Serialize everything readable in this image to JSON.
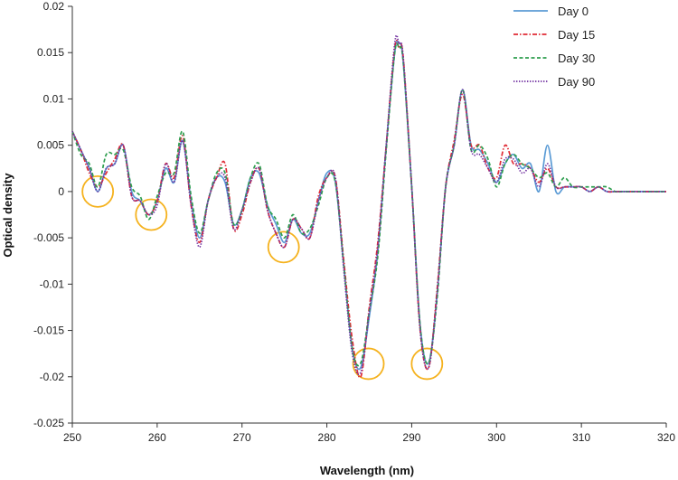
{
  "chart_data": {
    "type": "line",
    "title": "",
    "xlabel": "Wavelength (nm)",
    "ylabel": "Optical density",
    "xlim": [
      250,
      320
    ],
    "ylim": [
      -0.025,
      0.02
    ],
    "xticks": [
      250,
      260,
      270,
      280,
      290,
      300,
      310,
      320
    ],
    "yticks": [
      -0.025,
      -0.02,
      -0.015,
      -0.01,
      -0.005,
      0,
      0.005,
      0.01,
      0.015,
      0.02
    ],
    "xtick_labels": [
      "250",
      "260",
      "270",
      "280",
      "290",
      "300",
      "310",
      "320"
    ],
    "ytick_labels": [
      "-0.025",
      "-0.02",
      "-0.015",
      "-0.01",
      "-0.005",
      "0",
      "0.005",
      "0.01",
      "0.015",
      "0.02"
    ],
    "grid": false,
    "legend_position": "top-right",
    "series": [
      {
        "name": "Day 0",
        "color": "#5b9bd5",
        "dash": "solid",
        "x": [
          250,
          251,
          252,
          253,
          254,
          255,
          256,
          257,
          258,
          259,
          260,
          261,
          262,
          263,
          264,
          265,
          266,
          267,
          268,
          269,
          270,
          271,
          272,
          273,
          274,
          275,
          276,
          277,
          278,
          279,
          280,
          281,
          282,
          283,
          284,
          285,
          286,
          287,
          288,
          288.5,
          289,
          290,
          291,
          292,
          293,
          294,
          295,
          296,
          297,
          298,
          299,
          300,
          301,
          302,
          303,
          304,
          305,
          306,
          307,
          308,
          309,
          310,
          311,
          312,
          313,
          314,
          315,
          316,
          317,
          318,
          319,
          320
        ],
        "y": [
          0.0065,
          0.0045,
          0.0025,
          0.0,
          0.0025,
          0.003,
          0.005,
          0.0,
          -0.001,
          -0.0025,
          -0.001,
          0.0025,
          0.001,
          0.0055,
          -0.001,
          -0.005,
          -0.001,
          0.0015,
          0.001,
          -0.0035,
          -0.002,
          0.0015,
          0.002,
          -0.0015,
          -0.0035,
          -0.0055,
          -0.003,
          -0.0045,
          -0.0045,
          -0.001,
          0.002,
          0.001,
          -0.008,
          -0.017,
          -0.019,
          -0.0135,
          -0.0065,
          0.005,
          0.015,
          0.016,
          0.014,
          0.0005,
          -0.0145,
          -0.0185,
          -0.011,
          0.0005,
          0.005,
          0.011,
          0.005,
          0.0045,
          0.003,
          0.001,
          0.003,
          0.004,
          0.0025,
          0.003,
          0.0,
          0.005,
          0.0,
          0.0005,
          0.0005,
          0.0005,
          0.0,
          0.0005,
          0.0,
          0.0,
          0.0,
          0.0,
          0.0,
          0.0,
          0.0,
          0.0
        ]
      },
      {
        "name": "Day 15",
        "color": "#e02b35",
        "dash": "dashdot",
        "x": [
          250,
          251,
          252,
          253,
          254,
          255,
          256,
          257,
          258,
          259,
          260,
          261,
          262,
          263,
          264,
          265,
          266,
          267,
          268,
          269,
          270,
          271,
          272,
          273,
          274,
          275,
          276,
          277,
          278,
          279,
          280,
          281,
          282,
          283,
          284,
          285,
          286,
          287,
          288,
          288.5,
          289,
          290,
          291,
          292,
          293,
          294,
          295,
          296,
          297,
          298,
          299,
          300,
          301,
          302,
          303,
          304,
          305,
          306,
          307,
          308,
          309,
          310,
          311,
          312,
          313,
          314,
          315,
          316,
          317,
          318,
          319,
          320
        ],
        "y": [
          0.0065,
          0.0045,
          0.002,
          0.0005,
          0.002,
          0.0035,
          0.005,
          -0.0005,
          -0.001,
          -0.0025,
          -0.001,
          0.003,
          0.0015,
          0.006,
          -0.0015,
          -0.0055,
          -0.001,
          0.0015,
          0.003,
          -0.004,
          -0.0025,
          0.001,
          0.0025,
          -0.002,
          -0.0045,
          -0.006,
          -0.003,
          -0.004,
          -0.005,
          -0.0005,
          0.0015,
          0.0015,
          -0.0075,
          -0.016,
          -0.02,
          -0.0125,
          -0.0055,
          0.005,
          0.0155,
          0.0155,
          0.0145,
          0.0005,
          -0.015,
          -0.019,
          -0.0105,
          0.0005,
          0.0055,
          0.0105,
          0.005,
          0.005,
          0.0025,
          0.0015,
          0.005,
          0.003,
          0.003,
          0.0025,
          0.001,
          0.0025,
          0.0005,
          0.0005,
          0.0005,
          0.0005,
          0.0,
          0.0005,
          0.0,
          0.0,
          0.0,
          0.0,
          0.0,
          0.0,
          0.0,
          0.0
        ]
      },
      {
        "name": "Day 30",
        "color": "#2e9e4f",
        "dash": "dashed",
        "x": [
          250,
          251,
          252,
          253,
          254,
          255,
          256,
          257,
          258,
          259,
          260,
          261,
          262,
          263,
          264,
          265,
          266,
          267,
          268,
          269,
          270,
          271,
          272,
          273,
          274,
          275,
          276,
          277,
          278,
          279,
          280,
          281,
          282,
          283,
          284,
          285,
          286,
          287,
          288,
          288.5,
          289,
          290,
          291,
          292,
          293,
          294,
          295,
          296,
          297,
          298,
          299,
          300,
          301,
          302,
          303,
          304,
          305,
          306,
          307,
          308,
          309,
          310,
          311,
          312,
          313,
          314,
          315,
          316,
          317,
          318,
          319,
          320
        ],
        "y": [
          0.0065,
          0.004,
          0.003,
          0.0005,
          0.004,
          0.004,
          0.0045,
          0.0005,
          -0.0005,
          -0.003,
          -0.0005,
          0.002,
          0.002,
          0.0065,
          -0.0005,
          -0.0045,
          -0.001,
          0.002,
          0.002,
          -0.0035,
          -0.002,
          0.0015,
          0.003,
          -0.0015,
          -0.003,
          -0.005,
          -0.0025,
          -0.0045,
          -0.004,
          -0.0015,
          0.0015,
          0.001,
          -0.008,
          -0.017,
          -0.0185,
          -0.013,
          -0.007,
          0.0045,
          0.015,
          0.0155,
          0.014,
          0.0005,
          -0.0145,
          -0.0185,
          -0.0115,
          0.0005,
          0.005,
          0.011,
          0.0045,
          0.005,
          0.0035,
          0.0005,
          0.003,
          0.004,
          0.003,
          0.0025,
          0.0015,
          0.002,
          0.0005,
          0.0015,
          0.0005,
          0.0005,
          0.0005,
          0.0005,
          0.0005,
          0.0,
          0.0,
          0.0,
          0.0,
          0.0,
          0.0,
          0.0
        ]
      },
      {
        "name": "Day 90",
        "color": "#7030a0",
        "dash": "dotted",
        "x": [
          250,
          251,
          252,
          253,
          254,
          255,
          256,
          257,
          258,
          259,
          260,
          261,
          262,
          263,
          264,
          265,
          266,
          267,
          268,
          269,
          270,
          271,
          272,
          273,
          274,
          275,
          276,
          277,
          278,
          279,
          280,
          281,
          282,
          283,
          284,
          285,
          286,
          287,
          288,
          288.5,
          289,
          290,
          291,
          292,
          293,
          294,
          295,
          296,
          297,
          298,
          299,
          300,
          301,
          302,
          303,
          304,
          305,
          306,
          307,
          308,
          309,
          310,
          311,
          312,
          313,
          314,
          315,
          316,
          317,
          318,
          319,
          320
        ],
        "y": [
          0.0065,
          0.0045,
          0.0025,
          0.0,
          0.0025,
          0.003,
          0.005,
          -0.0005,
          -0.001,
          -0.0025,
          -0.0015,
          0.003,
          0.001,
          0.0055,
          -0.0015,
          -0.006,
          -0.001,
          0.0015,
          0.0015,
          -0.004,
          -0.002,
          0.001,
          0.0025,
          -0.002,
          -0.0045,
          -0.006,
          -0.003,
          -0.004,
          -0.005,
          -0.001,
          0.0015,
          0.0015,
          -0.0085,
          -0.0175,
          -0.0195,
          -0.013,
          -0.006,
          0.005,
          0.016,
          0.016,
          0.0145,
          0.0005,
          -0.015,
          -0.019,
          -0.011,
          0.0005,
          0.005,
          0.011,
          0.0045,
          0.004,
          0.0025,
          0.001,
          0.0035,
          0.0035,
          0.002,
          0.0025,
          0.0005,
          0.003,
          0.0005,
          0.0005,
          0.0005,
          0.0005,
          0.0,
          0.0005,
          0.0,
          0.0,
          0.0,
          0.0,
          0.0,
          0.0,
          0.0,
          0.0
        ]
      }
    ],
    "annotations": [
      {
        "type": "circle",
        "x": 253,
        "y": 0.0,
        "color": "#f5b21e"
      },
      {
        "type": "circle",
        "x": 259.3,
        "y": -0.0025,
        "color": "#f5b21e"
      },
      {
        "type": "circle",
        "x": 274.9,
        "y": -0.006,
        "color": "#f5b21e"
      },
      {
        "type": "circle",
        "x": 284.9,
        "y": -0.0186,
        "color": "#f5b21e"
      },
      {
        "type": "circle",
        "x": 291.8,
        "y": -0.0186,
        "color": "#f5b21e"
      }
    ]
  }
}
